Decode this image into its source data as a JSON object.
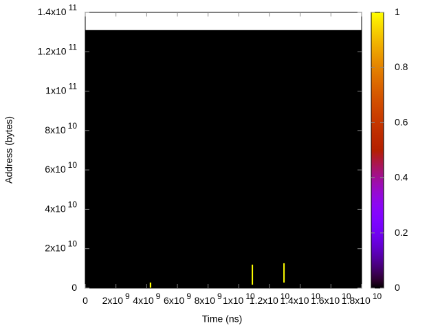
{
  "chart_data": {
    "type": "heatmap",
    "x_label": "Time (ns)",
    "y_label": "Address (bytes)",
    "xlim": [
      0,
      18000000000
    ],
    "ylim": [
      0,
      140000000000
    ],
    "cblim": [
      0,
      1
    ],
    "xticks": [
      0,
      {
        "value": 2000000000,
        "label": "2x10^9"
      },
      {
        "value": 4000000000,
        "label": "4x10^9"
      },
      {
        "value": 6000000000,
        "label": "6x10^9"
      },
      {
        "value": 8000000000,
        "label": "8x10^9"
      },
      {
        "value": 10000000000,
        "label": "1x10^10"
      },
      {
        "value": 12000000000,
        "label": "1.2x10^10"
      },
      {
        "value": 14000000000,
        "label": "1.4x10^10"
      },
      {
        "value": 16000000000,
        "label": "1.6x10^10"
      },
      {
        "value": 18000000000,
        "label": "1.8x10^10"
      }
    ],
    "yticks": [
      0,
      {
        "value": 20000000000,
        "label": "2x10^10"
      },
      {
        "value": 40000000000,
        "label": "4x10^10"
      },
      {
        "value": 60000000000,
        "label": "6x10^10"
      },
      {
        "value": 80000000000,
        "label": "8x10^10"
      },
      {
        "value": 100000000000,
        "label": "1x10^11"
      },
      {
        "value": 120000000000,
        "label": "1.2x10^11"
      },
      {
        "value": 140000000000,
        "label": "1.4x10^11"
      }
    ],
    "cbticks": [
      0,
      0.2,
      0.4,
      0.6,
      0.8,
      1
    ],
    "cells": [
      {
        "x0": 0,
        "x1": 18000000000,
        "y0": 0,
        "y1": 131000000000,
        "value": 0
      },
      {
        "x0": 4200000000,
        "x1": 4300000000,
        "y0": 0,
        "y1": 2800000000,
        "value": 1
      },
      {
        "x0": 10840000000,
        "x1": 10930000000,
        "y0": 1700000000,
        "y1": 11900000000,
        "value": 1
      },
      {
        "x0": 12900000000,
        "x1": 12990000000,
        "y0": 2800000000,
        "y1": 12600000000,
        "value": 1
      }
    ]
  }
}
